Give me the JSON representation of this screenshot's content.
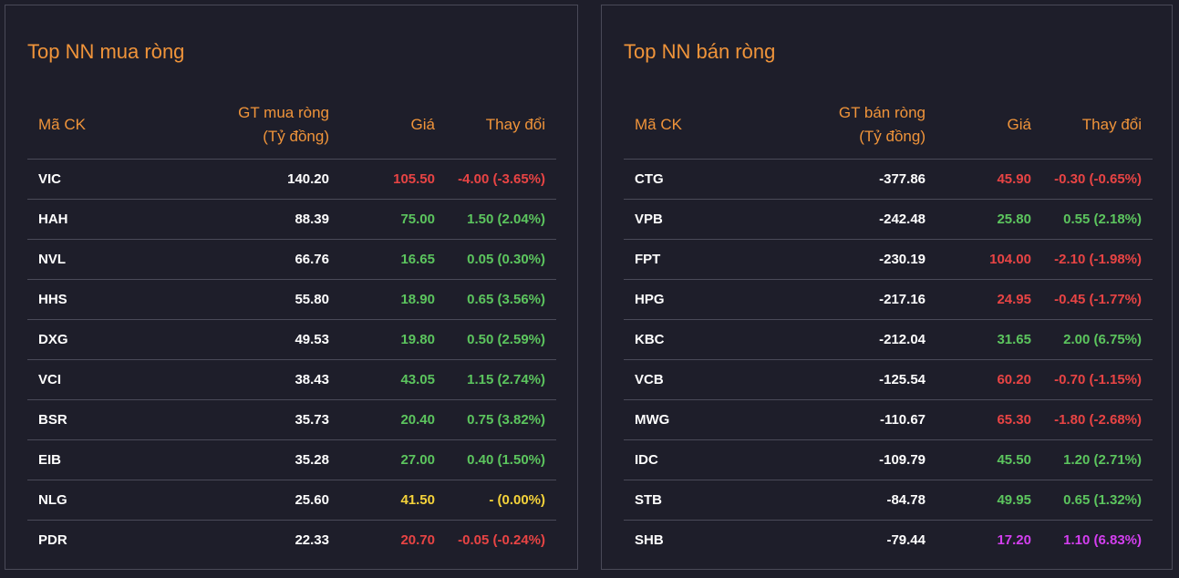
{
  "colors": {
    "up": "#5cc55e",
    "down": "#e84444",
    "reference": "#f5d33a",
    "ceiling": "#d43ff0",
    "accent": "#f0943a"
  },
  "buy": {
    "title": "Top NN mua ròng",
    "headers": {
      "symbol": "Mã CK",
      "value_line1": "GT mua ròng",
      "value_line2": "(Tỷ đồng)",
      "price": "Giá",
      "change": "Thay đổi"
    },
    "rows": [
      {
        "symbol": "VIC",
        "value": "140.20",
        "price": "105.50",
        "change": "-4.00 (-3.65%)",
        "trend": "down"
      },
      {
        "symbol": "HAH",
        "value": "88.39",
        "price": "75.00",
        "change": "1.50 (2.04%)",
        "trend": "up"
      },
      {
        "symbol": "NVL",
        "value": "66.76",
        "price": "16.65",
        "change": "0.05 (0.30%)",
        "trend": "up"
      },
      {
        "symbol": "HHS",
        "value": "55.80",
        "price": "18.90",
        "change": "0.65 (3.56%)",
        "trend": "up"
      },
      {
        "symbol": "DXG",
        "value": "49.53",
        "price": "19.80",
        "change": "0.50 (2.59%)",
        "trend": "up"
      },
      {
        "symbol": "VCI",
        "value": "38.43",
        "price": "43.05",
        "change": "1.15 (2.74%)",
        "trend": "up"
      },
      {
        "symbol": "BSR",
        "value": "35.73",
        "price": "20.40",
        "change": "0.75 (3.82%)",
        "trend": "up"
      },
      {
        "symbol": "EIB",
        "value": "35.28",
        "price": "27.00",
        "change": "0.40 (1.50%)",
        "trend": "up"
      },
      {
        "symbol": "NLG",
        "value": "25.60",
        "price": "41.50",
        "change": "- (0.00%)",
        "trend": "ref"
      },
      {
        "symbol": "PDR",
        "value": "22.33",
        "price": "20.70",
        "change": "-0.05 (-0.24%)",
        "trend": "down"
      }
    ]
  },
  "sell": {
    "title": "Top NN bán ròng",
    "headers": {
      "symbol": "Mã CK",
      "value_line1": "GT bán ròng",
      "value_line2": "(Tỷ đồng)",
      "price": "Giá",
      "change": "Thay đổi"
    },
    "rows": [
      {
        "symbol": "CTG",
        "value": "-377.86",
        "price": "45.90",
        "change": "-0.30 (-0.65%)",
        "trend": "down"
      },
      {
        "symbol": "VPB",
        "value": "-242.48",
        "price": "25.80",
        "change": "0.55 (2.18%)",
        "trend": "up"
      },
      {
        "symbol": "FPT",
        "value": "-230.19",
        "price": "104.00",
        "change": "-2.10 (-1.98%)",
        "trend": "down"
      },
      {
        "symbol": "HPG",
        "value": "-217.16",
        "price": "24.95",
        "change": "-0.45 (-1.77%)",
        "trend": "down"
      },
      {
        "symbol": "KBC",
        "value": "-212.04",
        "price": "31.65",
        "change": "2.00 (6.75%)",
        "trend": "up"
      },
      {
        "symbol": "VCB",
        "value": "-125.54",
        "price": "60.20",
        "change": "-0.70 (-1.15%)",
        "trend": "down"
      },
      {
        "symbol": "MWG",
        "value": "-110.67",
        "price": "65.30",
        "change": "-1.80 (-2.68%)",
        "trend": "down"
      },
      {
        "symbol": "IDC",
        "value": "-109.79",
        "price": "45.50",
        "change": "1.20 (2.71%)",
        "trend": "up"
      },
      {
        "symbol": "STB",
        "value": "-84.78",
        "price": "49.95",
        "change": "0.65 (1.32%)",
        "trend": "up"
      },
      {
        "symbol": "SHB",
        "value": "-79.44",
        "price": "17.20",
        "change": "1.10 (6.83%)",
        "trend": "ceil"
      }
    ]
  }
}
